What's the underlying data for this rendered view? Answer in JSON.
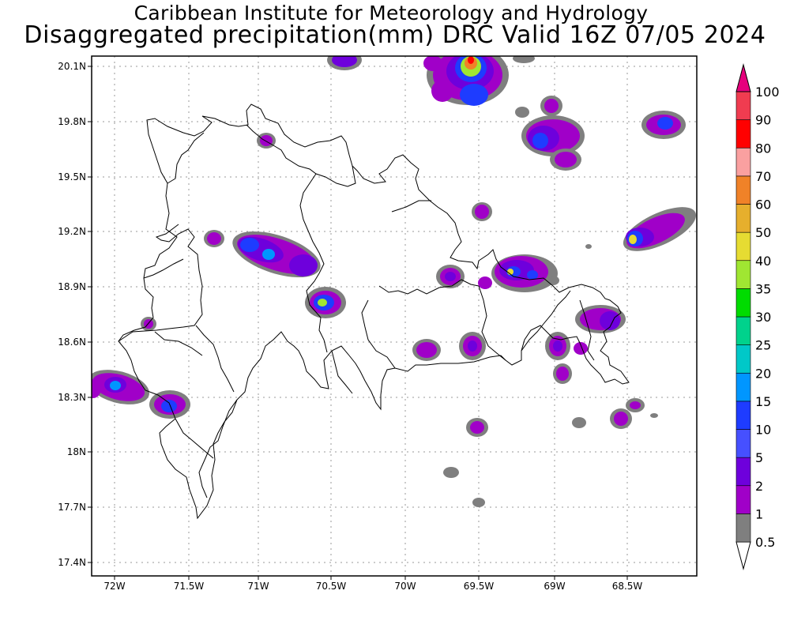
{
  "header": {
    "line1": "Caribbean Institute for Meteorology and Hydrology",
    "line2": "Disaggregated precipitation(mm) DRC Valid 16Z 07/05 2024"
  },
  "map": {
    "lat_labels": [
      "20.1N",
      "19.8N",
      "19.5N",
      "19.2N",
      "18.9N",
      "18.6N",
      "18.3N",
      "18N",
      "17.7N",
      "17.4N"
    ],
    "lon_labels": [
      "72W",
      "71.5W",
      "71W",
      "70.5W",
      "70W",
      "69.5W",
      "69W",
      "68.5W"
    ],
    "grid": true
  },
  "legend": {
    "levels": [
      {
        "label": "0.5",
        "color": "#ffffff"
      },
      {
        "label": "1",
        "color": "#7f7f7f"
      },
      {
        "label": "2",
        "color": "#a000c8"
      },
      {
        "label": "5",
        "color": "#6e00dc"
      },
      {
        "label": "10",
        "color": "#4650ff"
      },
      {
        "label": "15",
        "color": "#1e3cff"
      },
      {
        "label": "20",
        "color": "#0096ff"
      },
      {
        "label": "25",
        "color": "#00c8c8"
      },
      {
        "label": "30",
        "color": "#00d28c"
      },
      {
        "label": "35",
        "color": "#00dc00"
      },
      {
        "label": "40",
        "color": "#a0e632"
      },
      {
        "label": "50",
        "color": "#e6dc32"
      },
      {
        "label": "60",
        "color": "#e6af2d"
      },
      {
        "label": "70",
        "color": "#f08228"
      },
      {
        "label": "80",
        "color": "#faa0a0"
      },
      {
        "label": "90",
        "color": "#ff0000"
      },
      {
        "label": "100",
        "color": "#f03c50"
      },
      {
        "label": "",
        "color": "#e6007d"
      }
    ]
  }
}
